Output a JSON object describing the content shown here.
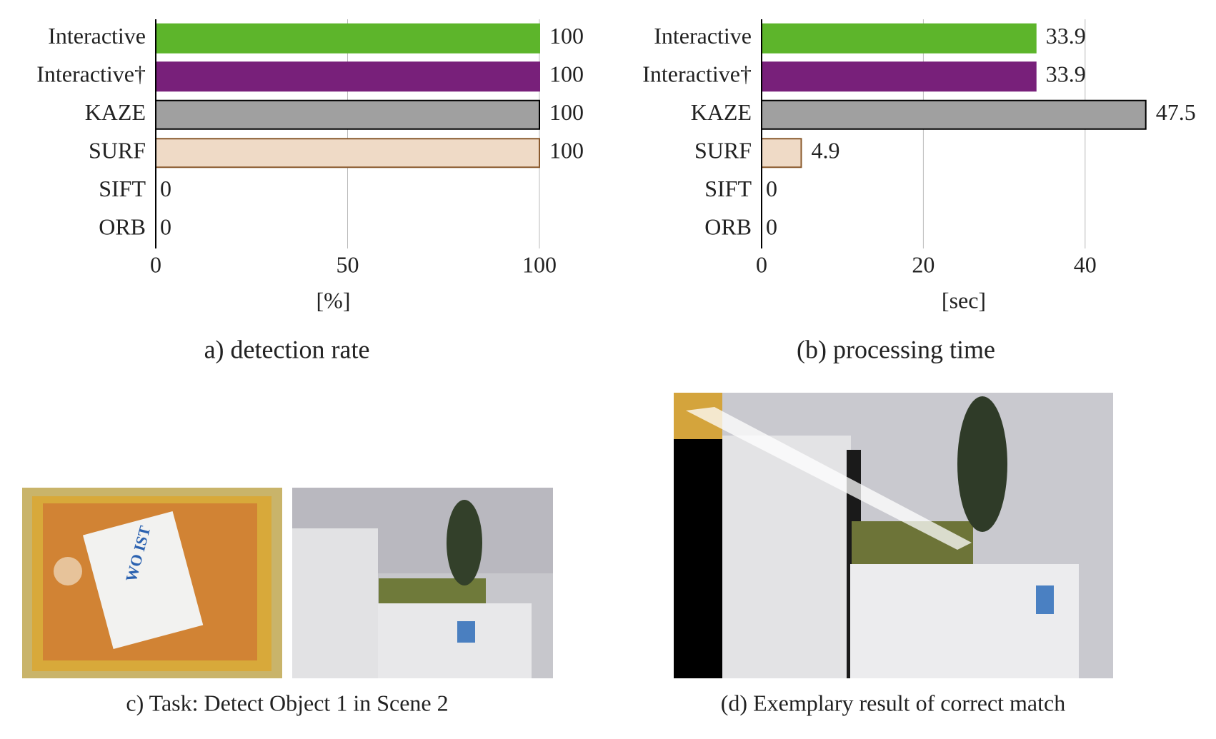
{
  "chart_data": [
    {
      "type": "barh",
      "title": "a) detection rate",
      "xlabel": "[%]",
      "categories": [
        "Interactive",
        "Interactive†",
        "KAZE",
        "SURF",
        "SIFT",
        "ORB"
      ],
      "values": [
        100,
        100,
        100,
        100,
        0,
        0
      ],
      "colors": [
        "#5db52b",
        "#78207a",
        "#a0a0a0",
        "#efdac6",
        "#c0272d",
        "#2f5fa8"
      ],
      "edge_colors": [
        "#5db52b",
        "#78207a",
        "#000000",
        "#8a5a2e",
        "#c0272d",
        "#2f5fa8"
      ],
      "label_colors": [
        "#5aac2a",
        "#6b1f72",
        "#000000",
        "#8a5a2e",
        "#c0272d",
        "#2f5fa8"
      ],
      "xlim": [
        0,
        100
      ],
      "xticks": [
        0,
        50,
        100
      ],
      "grid": true
    },
    {
      "type": "barh",
      "title": "(b) processing time",
      "xlabel": "[sec]",
      "categories": [
        "Interactive",
        "Interactive†",
        "KAZE",
        "SURF",
        "SIFT",
        "ORB"
      ],
      "values": [
        33.9,
        33.9,
        47.5,
        4.9,
        0,
        0
      ],
      "colors": [
        "#5db52b",
        "#78207a",
        "#a0a0a0",
        "#efdac6",
        "#c0272d",
        "#2f5fa8"
      ],
      "edge_colors": [
        "#5db52b",
        "#78207a",
        "#000000",
        "#8a5a2e",
        "#c0272d",
        "#2f5fa8"
      ],
      "label_colors": [
        "#5aac2a",
        "#6b1f72",
        "#000000",
        "#8a5a2e",
        "#c0272d",
        "#2f5fa8"
      ],
      "xlim": [
        0,
        50
      ],
      "xticks": [
        0,
        20,
        40
      ],
      "grid": true
    }
  ],
  "panels": [
    {
      "caption": "c) Task: Detect Object 1 in Scene 2"
    },
    {
      "caption": "(d) Exemplary result of correct match"
    }
  ]
}
